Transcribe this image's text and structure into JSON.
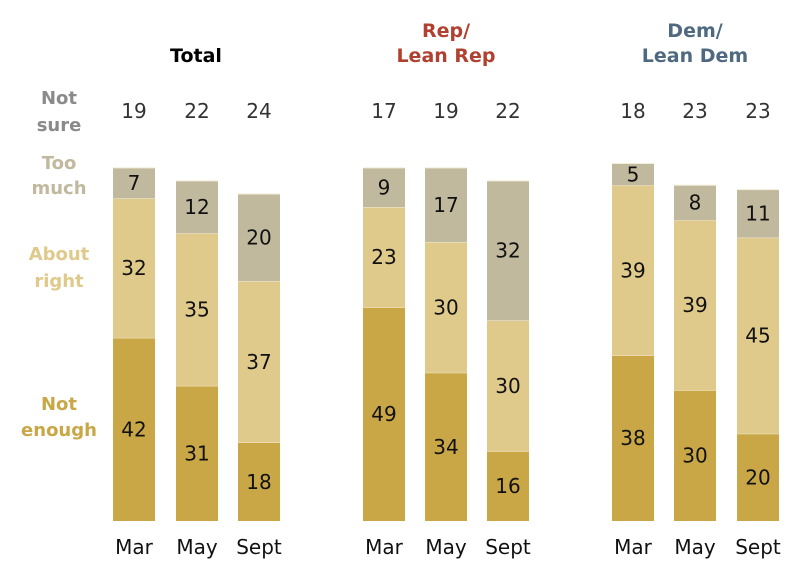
{
  "chart_data": {
    "type": "bar",
    "stacked": true,
    "categories": [
      "Mar",
      "May",
      "Sept"
    ],
    "groups": [
      {
        "name": "Total",
        "color": "#000000",
        "not_sure": [
          19,
          22,
          24
        ],
        "series": [
          {
            "name": "Not enough",
            "values": [
              42,
              31,
              18
            ]
          },
          {
            "name": "About right",
            "values": [
              32,
              35,
              37
            ]
          },
          {
            "name": "Too much",
            "values": [
              7,
              12,
              20
            ]
          }
        ]
      },
      {
        "name": "Rep/\nLean Rep",
        "title_lines": [
          "Rep/",
          "Lean Rep"
        ],
        "color": "#b0402f",
        "not_sure": [
          17,
          19,
          22
        ],
        "series": [
          {
            "name": "Not enough",
            "values": [
              49,
              34,
              16
            ]
          },
          {
            "name": "About right",
            "values": [
              23,
              30,
              30
            ]
          },
          {
            "name": "Too much",
            "values": [
              9,
              17,
              32
            ]
          }
        ]
      },
      {
        "name": "Dem/\nLean Dem",
        "title_lines": [
          "Dem/",
          "Lean Dem"
        ],
        "color": "#4f6a80",
        "not_sure": [
          18,
          23,
          23
        ],
        "series": [
          {
            "name": "Not enough",
            "values": [
              38,
              30,
              20
            ]
          },
          {
            "name": "About right",
            "values": [
              39,
              39,
              45
            ]
          },
          {
            "name": "Too much",
            "values": [
              5,
              8,
              11
            ]
          }
        ]
      }
    ],
    "legend": [
      {
        "name": "Not sure",
        "lines": [
          "Not",
          "sure"
        ],
        "color": "#8a8a8a"
      },
      {
        "name": "Too much",
        "lines": [
          "Too",
          "much"
        ],
        "color": "#c1b99e"
      },
      {
        "name": "About right",
        "lines": [
          "About",
          "right"
        ],
        "color": "#dfca8b"
      },
      {
        "name": "Not enough",
        "lines": [
          "Not",
          "enough"
        ],
        "color": "#c9a747"
      }
    ],
    "segment_colors": {
      "Not enough": "#c9a747",
      "About right": "#dfca8b",
      "Too much": "#c1b99e"
    },
    "legend_placement": "left",
    "title": "",
    "xlabel": "",
    "ylabel": "",
    "units": "percent"
  }
}
